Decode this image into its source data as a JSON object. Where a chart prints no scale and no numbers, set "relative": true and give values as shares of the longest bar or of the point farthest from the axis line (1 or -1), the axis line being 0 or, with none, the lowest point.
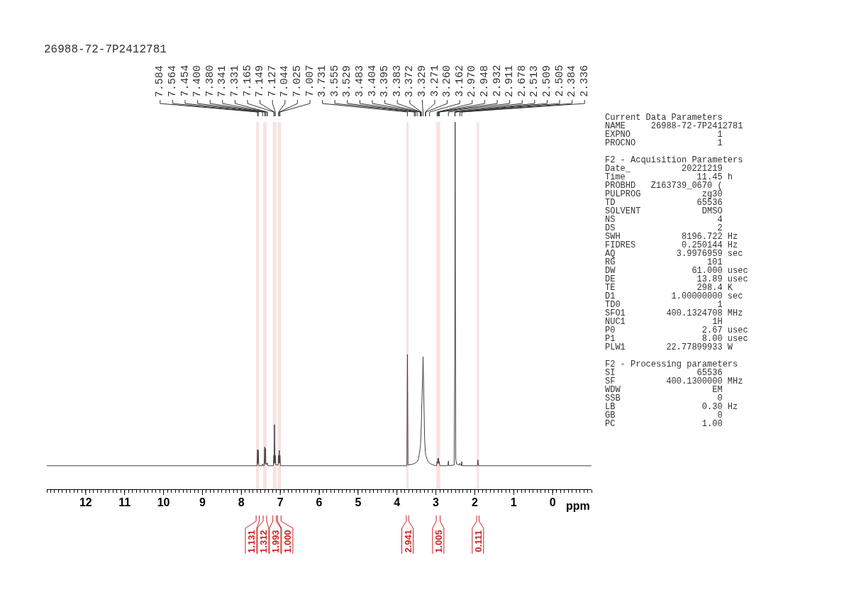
{
  "chart_data": {
    "type": "line",
    "title": "26988-72-7P2412781",
    "xlabel": "ppm",
    "relative": true,
    "color": "#404040",
    "tick_labels": "x",
    "xlim": [
      13,
      -1
    ],
    "xticks": [
      {
        "value": 13,
        "label": null
      },
      {
        "value": 12.9,
        "label": null
      },
      {
        "value": 12.8,
        "label": null
      },
      {
        "value": 12.7,
        "label": null
      },
      {
        "value": 12.6,
        "label": null
      },
      {
        "value": 12.5,
        "label": null
      },
      {
        "value": 12.4,
        "label": null
      },
      {
        "value": 12.3,
        "label": null
      },
      {
        "value": 12.2,
        "label": null
      },
      {
        "value": 12.1,
        "label": null
      },
      12,
      {
        "value": 11.9,
        "label": null
      },
      {
        "value": 11.8,
        "label": null
      },
      {
        "value": 11.7,
        "label": null
      },
      {
        "value": 11.6,
        "label": null
      },
      {
        "value": 11.5,
        "label": null
      },
      {
        "value": 11.4,
        "label": null
      },
      {
        "value": 11.3,
        "label": null
      },
      {
        "value": 11.2,
        "label": null
      },
      {
        "value": 11.1,
        "label": null
      },
      11,
      {
        "value": 10.9,
        "label": null
      },
      {
        "value": 10.8,
        "label": null
      },
      {
        "value": 10.7,
        "label": null
      },
      {
        "value": 10.6,
        "label": null
      },
      {
        "value": 10.5,
        "label": null
      },
      {
        "value": 10.4,
        "label": null
      },
      {
        "value": 10.3,
        "label": null
      },
      {
        "value": 10.2,
        "label": null
      },
      {
        "value": 10.1,
        "label": null
      },
      10,
      {
        "value": 9.9,
        "label": null
      },
      {
        "value": 9.8,
        "label": null
      },
      {
        "value": 9.7,
        "label": null
      },
      {
        "value": 9.6,
        "label": null
      },
      {
        "value": 9.5,
        "label": null
      },
      {
        "value": 9.4,
        "label": null
      },
      {
        "value": 9.3,
        "label": null
      },
      {
        "value": 9.2,
        "label": null
      },
      {
        "value": 9.1,
        "label": null
      },
      9,
      {
        "value": 8.9,
        "label": null
      },
      {
        "value": 8.8,
        "label": null
      },
      {
        "value": 8.7,
        "label": null
      },
      {
        "value": 8.6,
        "label": null
      },
      {
        "value": 8.5,
        "label": null
      },
      {
        "value": 8.4,
        "label": null
      },
      {
        "value": 8.3,
        "label": null
      },
      {
        "value": 8.2,
        "label": null
      },
      {
        "value": 8.1,
        "label": null
      },
      8,
      {
        "value": 7.9,
        "label": null
      },
      {
        "value": 7.8,
        "label": null
      },
      {
        "value": 7.7,
        "label": null
      },
      {
        "value": 7.6,
        "label": null
      },
      {
        "value": 7.5,
        "label": null
      },
      {
        "value": 7.4,
        "label": null
      },
      {
        "value": 7.3,
        "label": null
      },
      {
        "value": 7.2,
        "label": null
      },
      {
        "value": 7.1,
        "label": null
      },
      7,
      {
        "value": 6.9,
        "label": null
      },
      {
        "value": 6.8,
        "label": null
      },
      {
        "value": 6.7,
        "label": null
      },
      {
        "value": 6.6,
        "label": null
      },
      {
        "value": 6.5,
        "label": null
      },
      {
        "value": 6.4,
        "label": null
      },
      {
        "value": 6.3,
        "label": null
      },
      {
        "value": 6.2,
        "label": null
      },
      {
        "value": 6.1,
        "label": null
      },
      6,
      {
        "value": 5.9,
        "label": null
      },
      {
        "value": 5.8,
        "label": null
      },
      {
        "value": 5.7,
        "label": null
      },
      {
        "value": 5.6,
        "label": null
      },
      {
        "value": 5.5,
        "label": null
      },
      {
        "value": 5.4,
        "label": null
      },
      {
        "value": 5.3,
        "label": null
      },
      {
        "value": 5.2,
        "label": null
      },
      {
        "value": 5.1,
        "label": null
      },
      5,
      {
        "value": 4.9,
        "label": null
      },
      {
        "value": 4.8,
        "label": null
      },
      {
        "value": 4.7,
        "label": null
      },
      {
        "value": 4.6,
        "label": null
      },
      {
        "value": 4.5,
        "label": null
      },
      {
        "value": 4.4,
        "label": null
      },
      {
        "value": 4.3,
        "label": null
      },
      {
        "value": 4.2,
        "label": null
      },
      {
        "value": 4.1,
        "label": null
      },
      4,
      {
        "value": 3.9,
        "label": null
      },
      {
        "value": 3.8,
        "label": null
      },
      {
        "value": 3.7,
        "label": null
      },
      {
        "value": 3.6,
        "label": null
      },
      {
        "value": 3.5,
        "label": null
      },
      {
        "value": 3.4,
        "label": null
      },
      {
        "value": 3.3,
        "label": null
      },
      {
        "value": 3.2,
        "label": null
      },
      {
        "value": 3.1,
        "label": null
      },
      3,
      {
        "value": 2.9,
        "label": null
      },
      {
        "value": 2.8,
        "label": null
      },
      {
        "value": 2.7,
        "label": null
      },
      {
        "value": 2.6,
        "label": null
      },
      {
        "value": 2.5,
        "label": null
      },
      {
        "value": 2.4,
        "label": null
      },
      {
        "value": 2.3,
        "label": null
      },
      {
        "value": 2.2,
        "label": null
      },
      {
        "value": 2.1,
        "label": null
      },
      2,
      {
        "value": 1.9,
        "label": null
      },
      {
        "value": 1.8,
        "label": null
      },
      {
        "value": 1.7,
        "label": null
      },
      {
        "value": 1.6,
        "label": null
      },
      {
        "value": 1.5,
        "label": null
      },
      {
        "value": 1.4,
        "label": null
      },
      {
        "value": 1.3,
        "label": null
      },
      {
        "value": 1.2,
        "label": null
      },
      {
        "value": 1.1,
        "label": null
      },
      1,
      {
        "value": 0.9,
        "label": null
      },
      {
        "value": 0.8,
        "label": null
      },
      {
        "value": 0.7,
        "label": null
      },
      {
        "value": 0.6,
        "label": null
      },
      {
        "value": 0.5,
        "label": null
      },
      {
        "value": 0.4,
        "label": null
      },
      {
        "value": 0.3,
        "label": null
      },
      {
        "value": 0.2,
        "label": null
      },
      {
        "value": 0.1,
        "label": null
      },
      0,
      {
        "value": -0.1,
        "label": null
      },
      {
        "value": -0.2,
        "label": null
      },
      {
        "value": -0.3,
        "label": null
      },
      {
        "value": -0.4,
        "label": null
      },
      {
        "value": -0.5,
        "label": null
      },
      {
        "value": -0.6,
        "label": null
      },
      {
        "value": -0.7,
        "label": null
      },
      {
        "value": -0.8,
        "label": null
      },
      {
        "value": -0.9,
        "label": null
      },
      {
        "value": -1,
        "label": null
      }
    ],
    "x": [
      13.0,
      8.0,
      7.62,
      7.595,
      7.584,
      7.574,
      7.564,
      7.553,
      7.47,
      7.454,
      7.44,
      7.412,
      7.4,
      7.39,
      7.38,
      7.37,
      7.341,
      7.336,
      7.331,
      7.32,
      7.176,
      7.165,
      7.157,
      7.149,
      7.138,
      7.127,
      7.116,
      7.055,
      7.044,
      7.035,
      7.025,
      7.016,
      7.007,
      6.996,
      4.0,
      3.745,
      3.731,
      3.717,
      3.6,
      3.555,
      3.529,
      3.483,
      3.45,
      3.404,
      3.395,
      3.383,
      3.372,
      3.35,
      3.329,
      3.31,
      3.29,
      3.271,
      3.26,
      3.2,
      3.162,
      3.1,
      3.0,
      2.98,
      2.97,
      2.958,
      2.948,
      2.94,
      2.932,
      2.921,
      2.911,
      2.9,
      2.69,
      2.678,
      2.666,
      2.53,
      2.513,
      2.509,
      2.505,
      2.49,
      2.47,
      2.4,
      2.384,
      2.37,
      2.348,
      2.336,
      2.325,
      1.935,
      1.92,
      1.905,
      -1.0
    ],
    "values": [
      0.064,
      0.064,
      0.064,
      0.064,
      0.108,
      0.07,
      0.106,
      0.064,
      0.064,
      0.069,
      0.064,
      0.064,
      0.115,
      0.07,
      0.111,
      0.067,
      0.071,
      0.068,
      0.071,
      0.064,
      0.064,
      0.092,
      0.071,
      0.176,
      0.071,
      0.092,
      0.066,
      0.066,
      0.092,
      0.071,
      0.106,
      0.071,
      0.092,
      0.064,
      0.064,
      0.064,
      0.367,
      0.066,
      0.068,
      0.07,
      0.071,
      0.075,
      0.081,
      0.111,
      0.12,
      0.148,
      0.186,
      0.27,
      0.361,
      0.251,
      0.139,
      0.101,
      0.092,
      0.075,
      0.071,
      0.067,
      0.064,
      0.064,
      0.075,
      0.07,
      0.084,
      0.073,
      0.084,
      0.07,
      0.075,
      0.064,
      0.064,
      0.077,
      0.064,
      0.066,
      0.392,
      0.813,
      1.0,
      0.083,
      0.069,
      0.066,
      0.071,
      0.066,
      0.064,
      0.075,
      0.064,
      0.064,
      0.08,
      0.064,
      0.064
    ],
    "bands": [
      {
        "axis": "x",
        "from": 7.62,
        "to": 7.54,
        "label": "1.131",
        "color": "#cc2222"
      },
      {
        "axis": "x",
        "from": 7.44,
        "to": 7.35,
        "label": "1.312",
        "color": "#cc2222"
      },
      {
        "axis": "x",
        "from": 7.19,
        "to": 7.1,
        "label": "1.993",
        "color": "#cc2222"
      },
      {
        "axis": "x",
        "from": 7.07,
        "to": 6.98,
        "label": "1.000",
        "color": "#cc2222"
      },
      {
        "axis": "x",
        "from": 3.76,
        "to": 3.7,
        "label": "2.941",
        "color": "#cc2222"
      },
      {
        "axis": "x",
        "from": 2.99,
        "to": 2.89,
        "label": "1.005",
        "color": "#cc2222"
      },
      {
        "axis": "x",
        "from": 1.95,
        "to": 1.89,
        "label": "0.111",
        "color": "#cc2222"
      }
    ],
    "annotations": [
      {
        "text": "7.584",
        "x": 7.584
      },
      {
        "text": "7.564",
        "x": 7.564
      },
      {
        "text": "7.454",
        "x": 7.454
      },
      {
        "text": "7.400",
        "x": 7.4
      },
      {
        "text": "7.380",
        "x": 7.38
      },
      {
        "text": "7.341",
        "x": 7.341
      },
      {
        "text": "7.331",
        "x": 7.331
      },
      {
        "text": "7.165",
        "x": 7.165
      },
      {
        "text": "7.149",
        "x": 7.149
      },
      {
        "text": "7.127",
        "x": 7.127
      },
      {
        "text": "7.044",
        "x": 7.044
      },
      {
        "text": "7.025",
        "x": 7.025
      },
      {
        "text": "7.007",
        "x": 7.007
      },
      {
        "text": "3.731",
        "x": 3.731
      },
      {
        "text": "3.555",
        "x": 3.555
      },
      {
        "text": "3.529",
        "x": 3.529
      },
      {
        "text": "3.483",
        "x": 3.483
      },
      {
        "text": "3.404",
        "x": 3.404
      },
      {
        "text": "3.395",
        "x": 3.395
      },
      {
        "text": "3.383",
        "x": 3.383
      },
      {
        "text": "3.372",
        "x": 3.372
      },
      {
        "text": "3.329",
        "x": 3.329
      },
      {
        "text": "3.271",
        "x": 3.271
      },
      {
        "text": "3.260",
        "x": 3.26
      },
      {
        "text": "3.162",
        "x": 3.162
      },
      {
        "text": "2.970",
        "x": 2.97
      },
      {
        "text": "2.948",
        "x": 2.948
      },
      {
        "text": "2.932",
        "x": 2.932
      },
      {
        "text": "2.911",
        "x": 2.911
      },
      {
        "text": "2.678",
        "x": 2.678
      },
      {
        "text": "2.513",
        "x": 2.513
      },
      {
        "text": "2.509",
        "x": 2.509
      },
      {
        "text": "2.505",
        "x": 2.505
      },
      {
        "text": "2.384",
        "x": 2.384
      },
      {
        "text": "2.336",
        "x": 2.336
      },
      "Current Data Parameters",
      "NAME     26988-72-7P2412781",
      "EXPNO                 1",
      "PROCNO                1",
      "F2 - Acquisition Parameters",
      "Date_          20221219",
      "Time              11.45 h",
      "PROBHD   Z163739_0670 (",
      "PULPROG            zg30",
      "TD                65536",
      "SOLVENT            DMSO",
      "NS                    4",
      "DS                    2",
      "SWH            8196.722 Hz",
      "FIDRES         0.250144 Hz",
      "AQ            3.9976959 sec",
      "RG                  101",
      "DW               61.000 usec",
      "DE                13.89 usec",
      "TE                298.4 K",
      "D1           1.00000000 sec",
      "TD0                   1",
      "SFO1        400.1324708 MHz",
      "NUC1                 1H",
      "P0                 2.67 usec",
      "P1                 8.00 usec",
      "PLW1        22.77899933 W",
      "F2 - Processing parameters",
      "SI                65536",
      "SF          400.1300000 MHz",
      "WDW                  EM",
      "SSB                   0",
      "LB                 0.30 Hz",
      "GB                    0",
      "PC                 1.00"
    ]
  }
}
